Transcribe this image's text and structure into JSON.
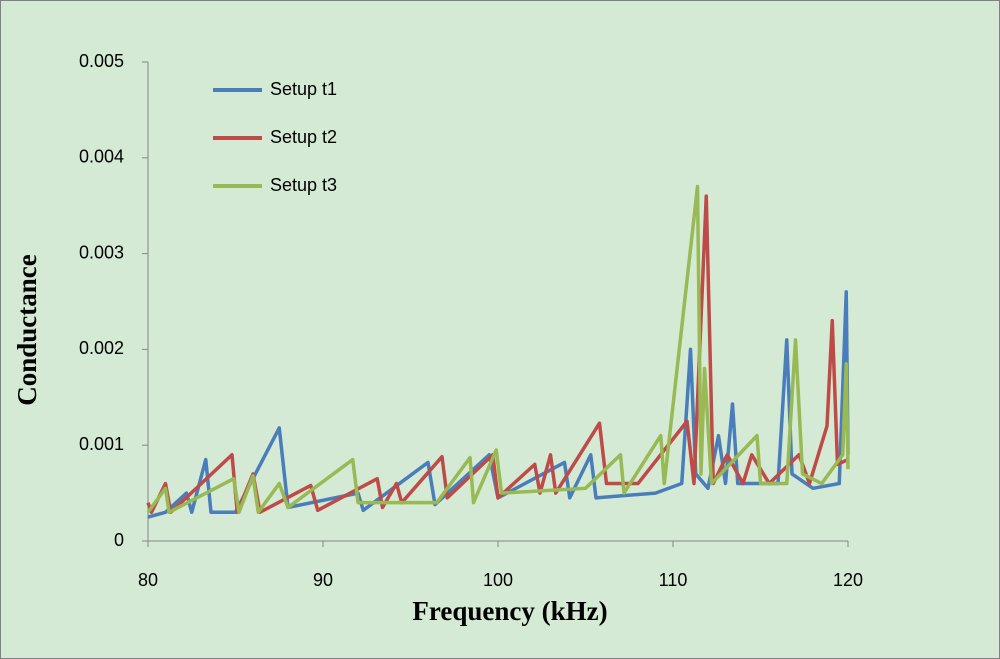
{
  "chart_data": {
    "type": "line",
    "x_label": "Frequency (kHz)",
    "y_label": "Conductance",
    "xlim": [
      80,
      120
    ],
    "xticks": [
      80,
      90,
      100,
      110,
      120
    ],
    "ylim": [
      0,
      0.005
    ],
    "yticks": [
      0,
      0.001,
      0.002,
      0.003,
      0.004,
      0.005
    ],
    "grid": false,
    "legend": "top-left",
    "series": [
      {
        "name": "Setup t1",
        "color": "#4a7ebb",
        "x": [
          80,
          81,
          82.2,
          82.5,
          83.3,
          83.6,
          85,
          87.5,
          88,
          92,
          92.3,
          96,
          96.4,
          99.5,
          100,
          103.8,
          104.1,
          105.3,
          105.6,
          109,
          110.5,
          111,
          111.3,
          112,
          112.6,
          113,
          113.4,
          113.7,
          116,
          116.5,
          116.8,
          118,
          119.5,
          119.9,
          120
        ],
        "values": [
          0.00025,
          0.0003,
          0.0005,
          0.0003,
          0.00085,
          0.0003,
          0.0003,
          0.00118,
          0.00035,
          0.0005,
          0.00032,
          0.00082,
          0.00038,
          0.0009,
          0.00045,
          0.00082,
          0.00045,
          0.0009,
          0.00045,
          0.0005,
          0.0006,
          0.002,
          0.0007,
          0.00055,
          0.0011,
          0.0006,
          0.00143,
          0.0006,
          0.0006,
          0.0021,
          0.0007,
          0.00055,
          0.0006,
          0.0026,
          0.0009
        ]
      },
      {
        "name": "Setup t2",
        "color": "#be4b48",
        "x": [
          80,
          80.2,
          81,
          81.3,
          84.8,
          85.1,
          86,
          86.4,
          89.3,
          89.7,
          93.1,
          93.4,
          94.2,
          94.5,
          96.8,
          97.1,
          99.7,
          100,
          102.1,
          102.4,
          103,
          103.3,
          105.8,
          106.2,
          108,
          110.8,
          111.2,
          111.9,
          112.3,
          113.1,
          114,
          114.5,
          115.5,
          117.2,
          117.8,
          118.8,
          119.1,
          119.4,
          120
        ],
        "values": [
          0.0004,
          0.0003,
          0.0006,
          0.0003,
          0.0009,
          0.0003,
          0.0007,
          0.0003,
          0.00058,
          0.00032,
          0.00065,
          0.00035,
          0.0006,
          0.0004,
          0.00088,
          0.00045,
          0.0009,
          0.00045,
          0.0008,
          0.0005,
          0.0009,
          0.0005,
          0.00123,
          0.0006,
          0.0006,
          0.00125,
          0.0006,
          0.0036,
          0.0006,
          0.0009,
          0.0006,
          0.0009,
          0.0006,
          0.0009,
          0.0006,
          0.0012,
          0.0023,
          0.0008,
          0.00085
        ]
      },
      {
        "name": "Setup t3",
        "color": "#98b954",
        "x": [
          80,
          81,
          81.2,
          84.9,
          85.2,
          86,
          86.3,
          87.5,
          88,
          91.7,
          92,
          96.5,
          98.4,
          98.6,
          99.9,
          100.2,
          105,
          107,
          107.2,
          109.3,
          109.5,
          111.4,
          111.6,
          111.8,
          112.2,
          114.8,
          115,
          116.5,
          117,
          117.4,
          118.5,
          119.7,
          119.9,
          120
        ],
        "values": [
          0.0003,
          0.00055,
          0.0003,
          0.00065,
          0.0003,
          0.00068,
          0.0003,
          0.0006,
          0.00035,
          0.00085,
          0.0004,
          0.0004,
          0.00087,
          0.0004,
          0.00095,
          0.0005,
          0.00055,
          0.0009,
          0.0005,
          0.0011,
          0.0006,
          0.0037,
          0.0007,
          0.0018,
          0.0006,
          0.0011,
          0.0006,
          0.0006,
          0.0021,
          0.0007,
          0.0006,
          0.0009,
          0.00185,
          0.00075
        ]
      }
    ]
  }
}
